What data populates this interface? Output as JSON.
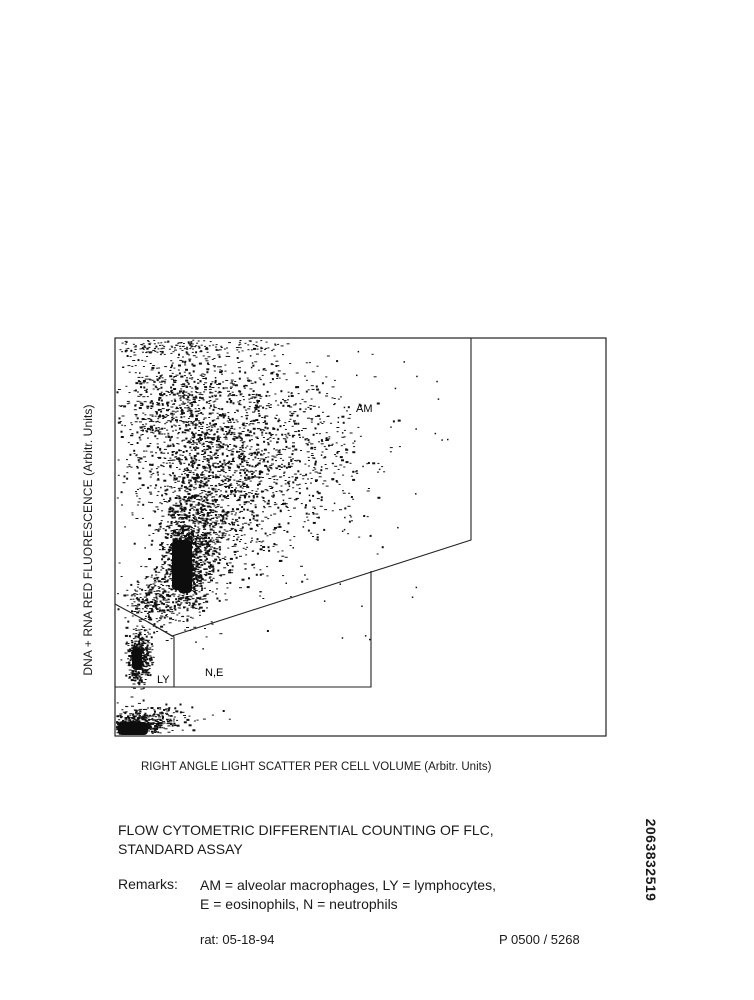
{
  "chart_data": {
    "type": "scatter",
    "xlabel": "RIGHT ANGLE LIGHT SCATTER PER CELL VOLUME (Arbitr. Units)",
    "ylabel": "DNA + RNA RED FLUORESCENCE (Arbitr. Units)",
    "regions": [
      {
        "label": "AM"
      },
      {
        "label": "LY"
      },
      {
        "label": "N,E"
      }
    ]
  },
  "title_lines": [
    "FLOW CYTOMETRIC DIFFERENTIAL COUNTING OF FLC,",
    "STANDARD ASSAY"
  ],
  "remarks": {
    "label": "Remarks:",
    "lines": [
      "AM = alveolar macrophages, LY = lymphocytes,",
      "E = eosinophils, N = neutrophils"
    ]
  },
  "footer": {
    "left": "rat: 05-18-94",
    "right": "P 0500 / 5268"
  },
  "document_id": "2063832519"
}
